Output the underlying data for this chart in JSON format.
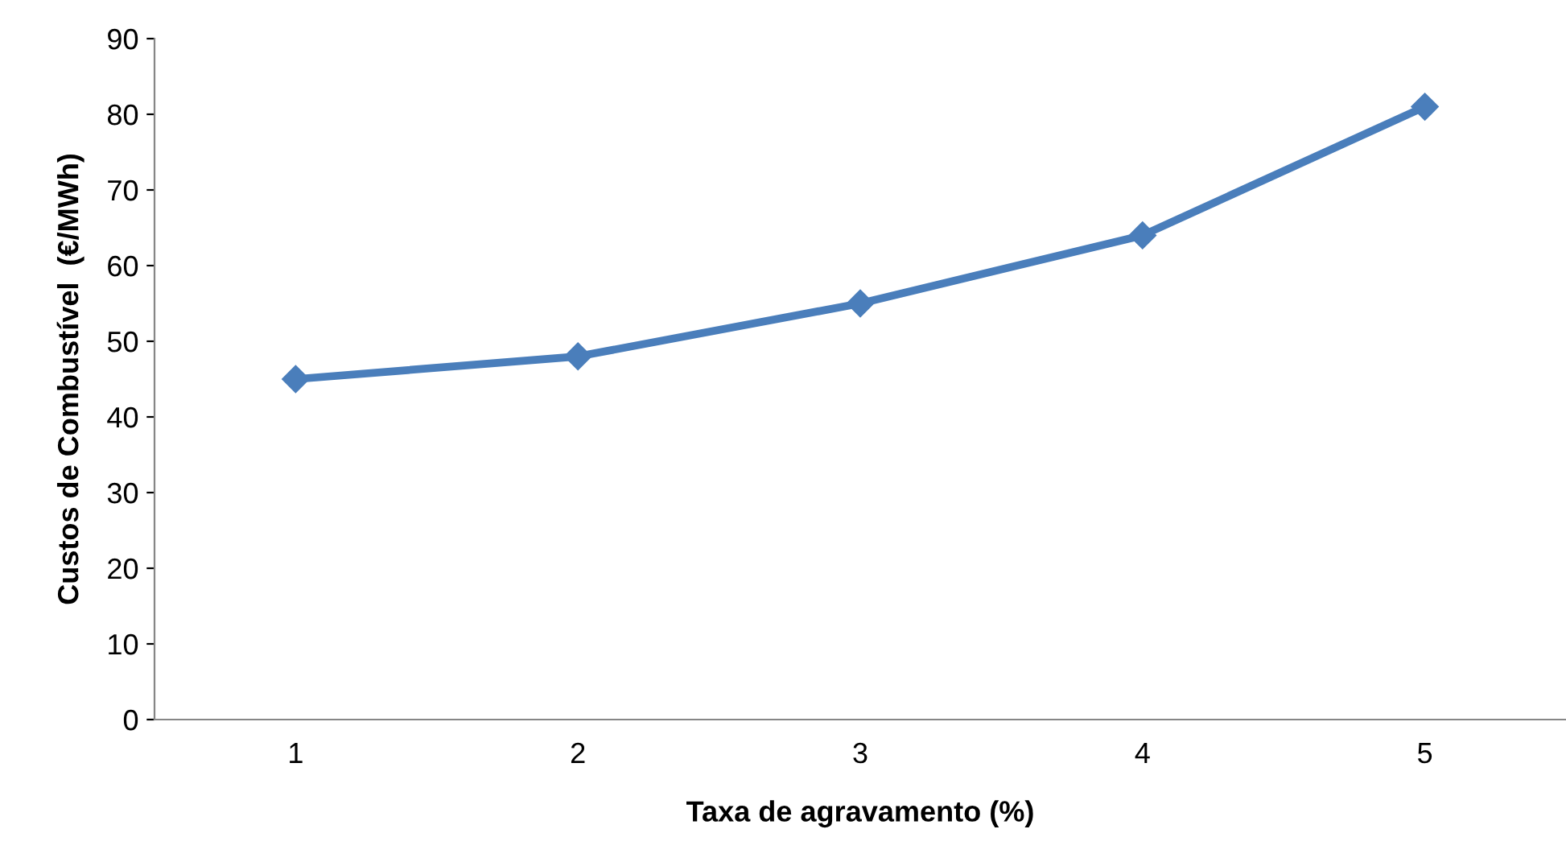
{
  "chart_data": {
    "type": "line",
    "categories": [
      "1",
      "2",
      "3",
      "4",
      "5"
    ],
    "series": [
      {
        "color": "#4a7ebb",
        "values": [
          45,
          48,
          55,
          64,
          81
        ]
      }
    ],
    "xlabel": "Taxa de agravamento (%)",
    "ylabel": "Custos de Combustível  (€/MWh)",
    "ylim": [
      0,
      90
    ],
    "yticks": [
      0,
      10,
      20,
      30,
      40,
      50,
      60,
      70,
      80,
      90
    ],
    "grid": false,
    "legend": false,
    "marker": "diamond",
    "line_style": "solid"
  }
}
